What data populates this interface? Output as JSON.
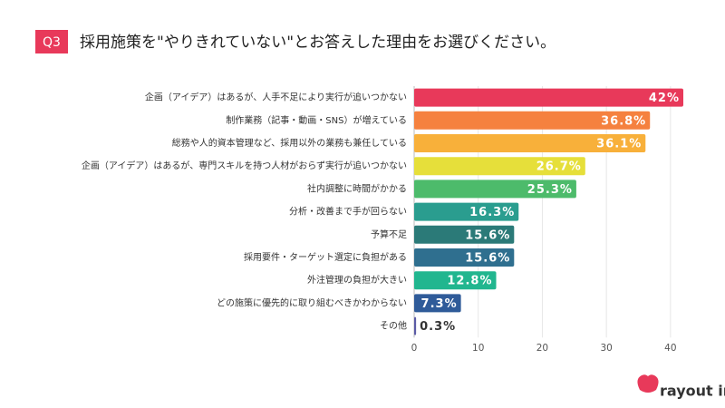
{
  "badge": "Q3",
  "chart_data": {
    "type": "bar",
    "orientation": "horizontal",
    "title": "採用施策を\"やりきれていない\"とお答えした理由をお選びください。",
    "categories": [
      "企画（アイデア）はあるが、人手不足により実行が追いつかない",
      "制作業務（記事・動画・SNS）が増えている",
      "総務や人的資本管理など、採用以外の業務も兼任している",
      "企画（アイデア）はあるが、専門スキルを持つ人材がおらず実行が追いつかない",
      "社内調整に時間がかかる",
      "分析・改善まで手が回らない",
      "予算不足",
      "採用要件・ターゲット選定に負担がある",
      "外注管理の負担が大きい",
      "どの施策に優先的に取り組むべきかわからない",
      "その他"
    ],
    "values": [
      42,
      36.8,
      36.1,
      26.7,
      25.3,
      16.3,
      15.6,
      15.6,
      12.8,
      7.3,
      0.3
    ],
    "value_labels": [
      "42%",
      "36.8%",
      "36.1%",
      "26.7%",
      "25.3%",
      "16.3%",
      "15.6%",
      "15.6%",
      "12.8%",
      "7.3%",
      "0.3%"
    ],
    "colors": [
      "#e8395a",
      "#f5813f",
      "#f8b03a",
      "#e6df3a",
      "#4dbb6b",
      "#2a9d8f",
      "#2b7a78",
      "#2f6f8f",
      "#21b68f",
      "#2f5b99",
      "#5b5ba6"
    ],
    "xlim": [
      0,
      42
    ],
    "xticks": [
      0,
      10,
      20,
      30,
      40
    ],
    "grid": true
  },
  "logo": "rayout inc."
}
